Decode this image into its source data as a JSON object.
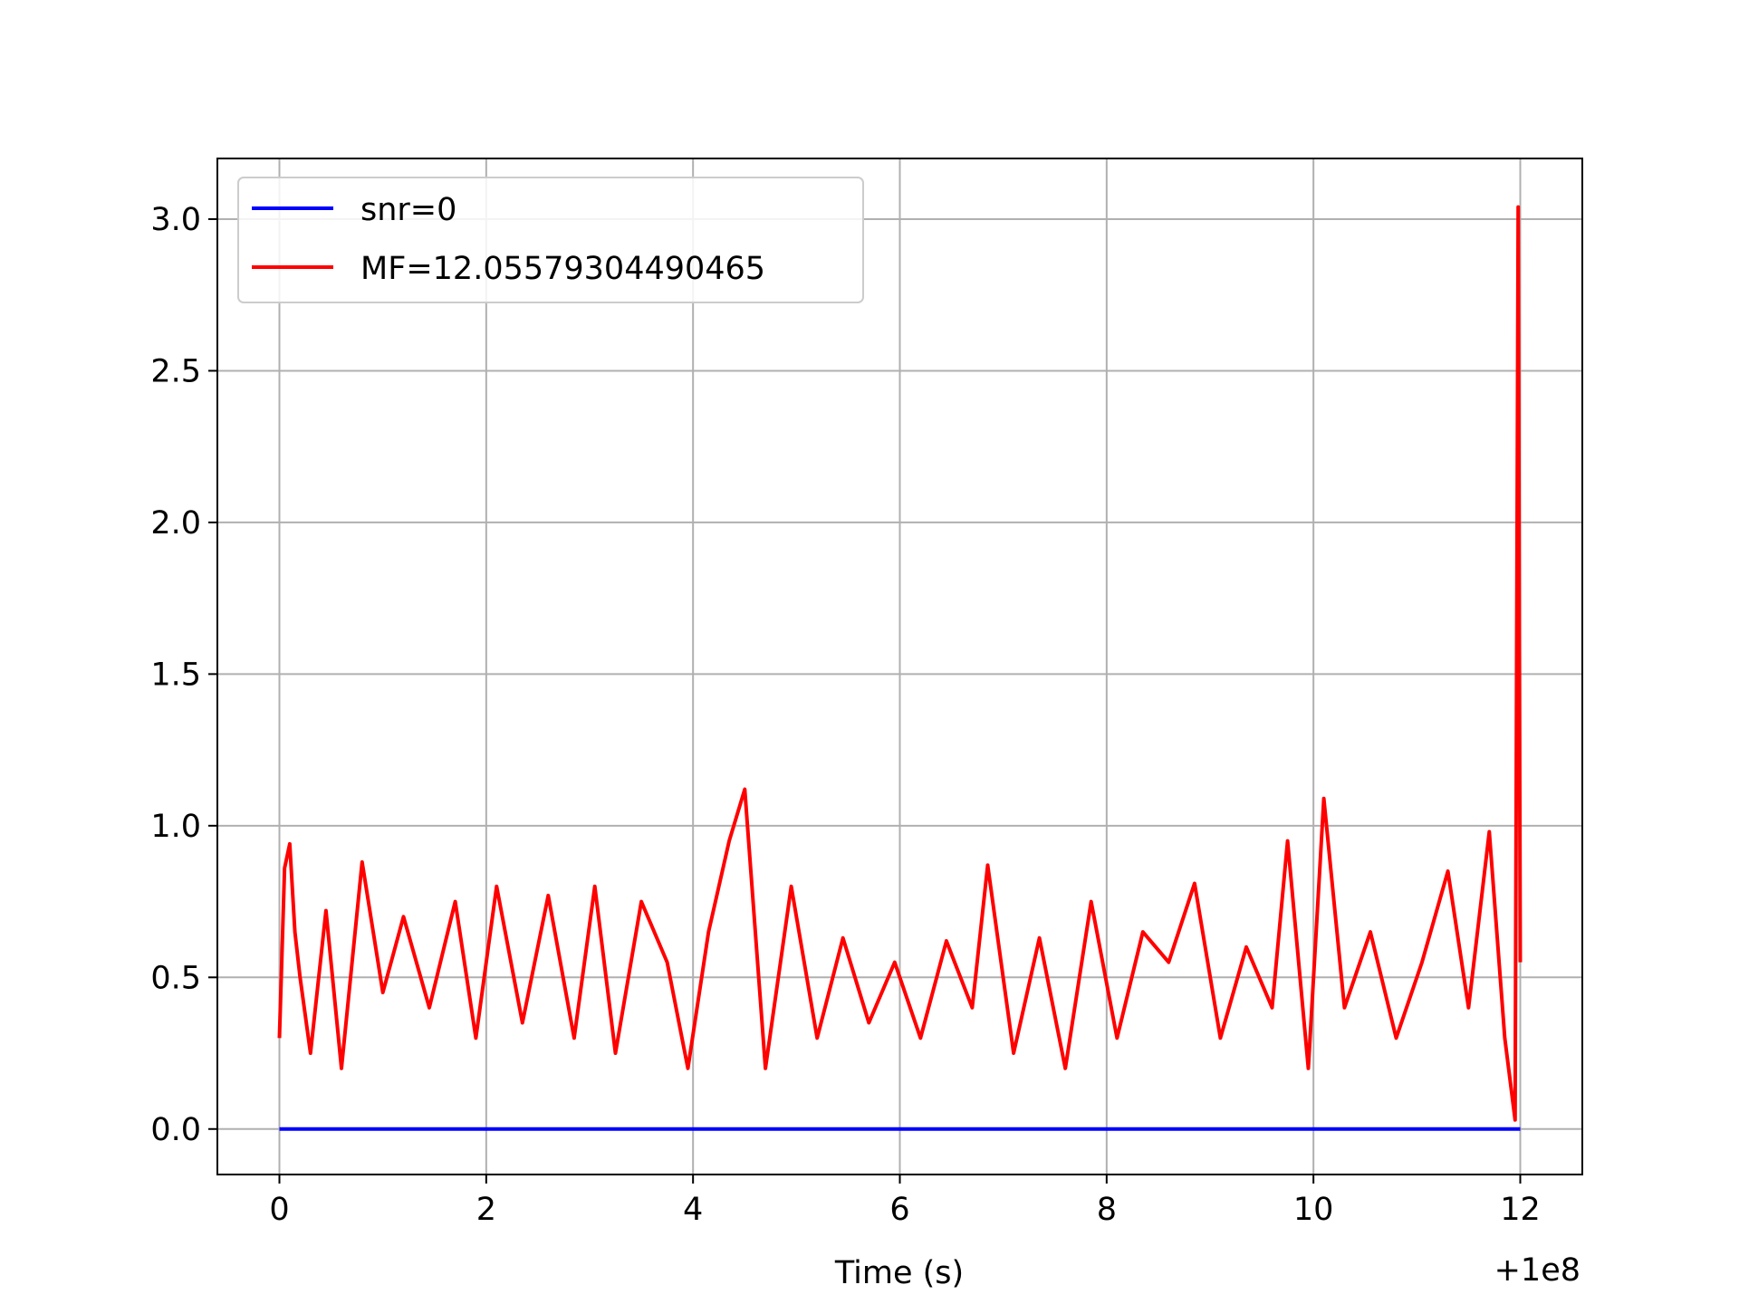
{
  "chart_data": {
    "type": "line",
    "title": "",
    "xlabel": "Time (s)",
    "ylabel": "",
    "x_offset_label": "+1e8",
    "xlim": [
      -0.6,
      12.6
    ],
    "ylim": [
      -0.15,
      3.2
    ],
    "x_ticks": [
      0,
      2,
      4,
      6,
      8,
      10,
      12
    ],
    "x_tick_labels": [
      "0",
      "2",
      "4",
      "6",
      "8",
      "10",
      "12"
    ],
    "y_ticks": [
      0.0,
      0.5,
      1.0,
      1.5,
      2.0,
      2.5,
      3.0
    ],
    "y_tick_labels": [
      "0.0",
      "0.5",
      "1.0",
      "1.5",
      "2.0",
      "2.5",
      "3.0"
    ],
    "grid": true,
    "legend_position": "top-left",
    "series": [
      {
        "name": "snr=0",
        "color": "#0000ff",
        "x": [
          0,
          12
        ],
        "y": [
          0,
          0
        ]
      },
      {
        "name": "MF=12.05579304490465",
        "color": "#ff0000",
        "x": [
          0,
          0.05,
          0.1,
          0.15,
          0.2,
          0.3,
          0.45,
          0.6,
          0.8,
          1.0,
          1.2,
          1.45,
          1.7,
          1.9,
          2.1,
          2.35,
          2.6,
          2.85,
          3.05,
          3.25,
          3.5,
          3.75,
          3.95,
          4.15,
          4.35,
          4.5,
          4.7,
          4.95,
          5.2,
          5.45,
          5.7,
          5.95,
          6.2,
          6.45,
          6.7,
          6.85,
          7.1,
          7.35,
          7.6,
          7.85,
          8.1,
          8.35,
          8.6,
          8.85,
          9.1,
          9.35,
          9.6,
          9.75,
          9.95,
          10.1,
          10.3,
          10.55,
          10.8,
          11.05,
          11.3,
          11.5,
          11.7,
          11.85,
          11.95,
          11.98,
          12.0
        ],
        "y": [
          0.3,
          0.86,
          0.94,
          0.65,
          0.5,
          0.25,
          0.72,
          0.2,
          0.88,
          0.45,
          0.7,
          0.4,
          0.75,
          0.3,
          0.8,
          0.35,
          0.77,
          0.3,
          0.8,
          0.25,
          0.75,
          0.55,
          0.2,
          0.65,
          0.95,
          1.12,
          0.2,
          0.8,
          0.3,
          0.63,
          0.35,
          0.55,
          0.3,
          0.62,
          0.4,
          0.87,
          0.25,
          0.63,
          0.2,
          0.75,
          0.3,
          0.65,
          0.55,
          0.81,
          0.3,
          0.6,
          0.4,
          0.95,
          0.2,
          1.09,
          0.4,
          0.65,
          0.3,
          0.55,
          0.85,
          0.4,
          0.98,
          0.3,
          0.03,
          3.04,
          0.55
        ]
      }
    ]
  }
}
